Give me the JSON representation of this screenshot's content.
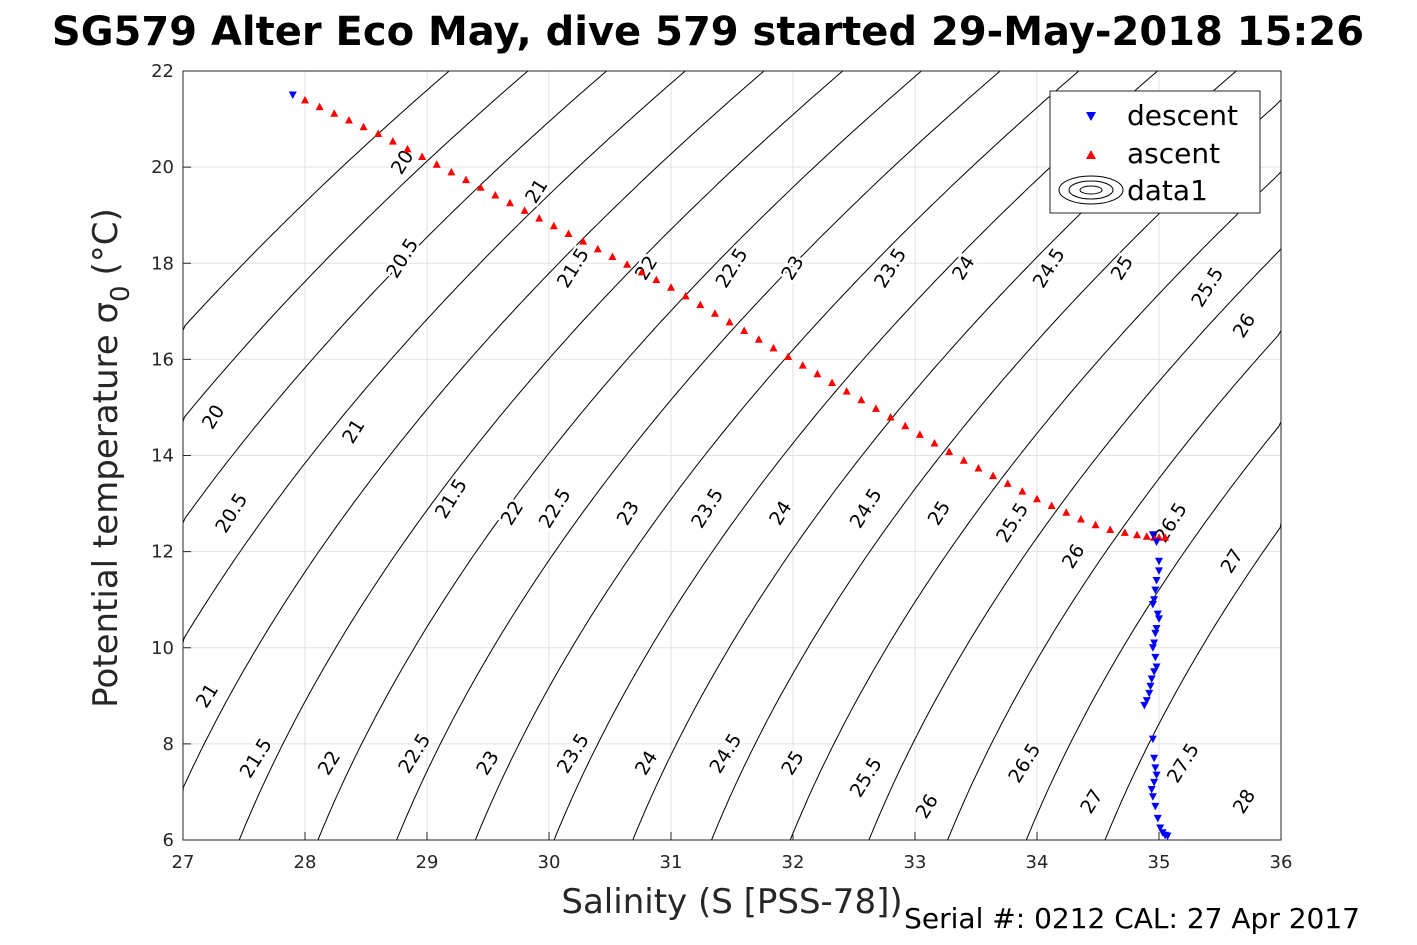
{
  "figure": {
    "title": "SG579 Alter Eco May, dive 579 started 29-May-2018 15:26",
    "footer": "Serial #: 0212  CAL: 27 Apr 2017"
  },
  "chart_data": {
    "type": "scatter",
    "xlabel": "Salinity (S [PSS-78])",
    "ylabel_main": "Potential temperature σ",
    "ylabel_sub": "0",
    "ylabel_unit": "(°C)",
    "xlim": [
      27,
      36
    ],
    "ylim": [
      6,
      22
    ],
    "xticks": [
      27,
      28,
      29,
      30,
      31,
      32,
      33,
      34,
      35,
      36
    ],
    "yticks": [
      6,
      8,
      10,
      12,
      14,
      16,
      18,
      20,
      22
    ],
    "grid": true,
    "legend_position": "top-right",
    "legend": [
      {
        "label": "descent",
        "marker": "triangle-down",
        "color": "#0000ff"
      },
      {
        "label": "ascent",
        "marker": "triangle-up",
        "color": "#ff0000"
      },
      {
        "label": "data1",
        "marker": "contour",
        "color": "#000000"
      }
    ],
    "density_contours": {
      "levels": [
        "20",
        "20.5",
        "21",
        "21.5",
        "22",
        "22.5",
        "23",
        "23.5",
        "24",
        "24.5",
        "25",
        "25.5",
        "26",
        "26.5",
        "27",
        "27.5",
        "28"
      ],
      "level_labels": [
        {
          "text": "20",
          "s": 28.8,
          "t": 20.1
        },
        {
          "text": "20.5",
          "s": 28.8,
          "t": 18.1
        },
        {
          "text": "21",
          "s": 29.9,
          "t": 19.5
        },
        {
          "text": "21.5",
          "s": 30.2,
          "t": 17.9
        },
        {
          "text": "22",
          "s": 30.8,
          "t": 17.9
        },
        {
          "text": "22.5",
          "s": 31.5,
          "t": 17.9
        },
        {
          "text": "23",
          "s": 32.0,
          "t": 17.9
        },
        {
          "text": "23.5",
          "s": 32.8,
          "t": 17.9
        },
        {
          "text": "24",
          "s": 33.4,
          "t": 17.9
        },
        {
          "text": "24.5",
          "s": 34.1,
          "t": 17.9
        },
        {
          "text": "25",
          "s": 34.7,
          "t": 17.9
        },
        {
          "text": "25.5",
          "s": 35.4,
          "t": 17.5
        },
        {
          "text": "26",
          "s": 35.7,
          "t": 16.7
        },
        {
          "text": "20",
          "s": 27.25,
          "t": 14.8
        },
        {
          "text": "20.5",
          "s": 27.4,
          "t": 12.8
        },
        {
          "text": "21",
          "s": 28.4,
          "t": 14.5
        },
        {
          "text": "21.5",
          "s": 29.2,
          "t": 13.1
        },
        {
          "text": "22",
          "s": 29.7,
          "t": 12.8
        },
        {
          "text": "22.5",
          "s": 30.05,
          "t": 12.9
        },
        {
          "text": "23",
          "s": 30.65,
          "t": 12.8
        },
        {
          "text": "23.5",
          "s": 31.3,
          "t": 12.9
        },
        {
          "text": "24",
          "s": 31.9,
          "t": 12.8
        },
        {
          "text": "24.5",
          "s": 32.6,
          "t": 12.9
        },
        {
          "text": "25",
          "s": 33.2,
          "t": 12.8
        },
        {
          "text": "25.5",
          "s": 33.8,
          "t": 12.6
        },
        {
          "text": "26",
          "s": 34.3,
          "t": 11.9
        },
        {
          "text": "26.5",
          "s": 35.1,
          "t": 12.6
        },
        {
          "text": "27",
          "s": 35.6,
          "t": 11.8
        },
        {
          "text": "21",
          "s": 27.2,
          "t": 9.0
        },
        {
          "text": "21.5",
          "s": 27.6,
          "t": 7.7
        },
        {
          "text": "22",
          "s": 28.2,
          "t": 7.6
        },
        {
          "text": "22.5",
          "s": 28.9,
          "t": 7.8
        },
        {
          "text": "23",
          "s": 29.5,
          "t": 7.6
        },
        {
          "text": "23.5",
          "s": 30.2,
          "t": 7.8
        },
        {
          "text": "24",
          "s": 30.8,
          "t": 7.6
        },
        {
          "text": "24.5",
          "s": 31.45,
          "t": 7.8
        },
        {
          "text": "25",
          "s": 32.0,
          "t": 7.6
        },
        {
          "text": "25.5",
          "s": 32.6,
          "t": 7.3
        },
        {
          "text": "26",
          "s": 33.1,
          "t": 6.7
        },
        {
          "text": "26.5",
          "s": 33.9,
          "t": 7.6
        },
        {
          "text": "27",
          "s": 34.45,
          "t": 6.8
        },
        {
          "text": "27.5",
          "s": 35.2,
          "t": 7.6
        },
        {
          "text": "28",
          "s": 35.7,
          "t": 6.8
        }
      ]
    },
    "series": [
      {
        "name": "descent",
        "points": [
          [
            27.9,
            21.5
          ],
          [
            34.95,
            12.35
          ],
          [
            34.98,
            12.2
          ],
          [
            35.0,
            11.8
          ],
          [
            35.0,
            11.6
          ],
          [
            34.98,
            11.4
          ],
          [
            34.97,
            11.2
          ],
          [
            34.96,
            11.0
          ],
          [
            34.95,
            10.9
          ],
          [
            34.99,
            10.7
          ],
          [
            35.0,
            10.6
          ],
          [
            34.98,
            10.4
          ],
          [
            34.97,
            10.3
          ],
          [
            34.96,
            10.1
          ],
          [
            34.95,
            10.0
          ],
          [
            34.97,
            9.8
          ],
          [
            34.98,
            9.6
          ],
          [
            34.96,
            9.5
          ],
          [
            34.94,
            9.35
          ],
          [
            34.93,
            9.2
          ],
          [
            34.92,
            9.05
          ],
          [
            34.9,
            8.9
          ],
          [
            34.88,
            8.8
          ],
          [
            34.95,
            8.1
          ],
          [
            34.96,
            7.7
          ],
          [
            34.97,
            7.5
          ],
          [
            34.98,
            7.35
          ],
          [
            34.96,
            7.2
          ],
          [
            34.94,
            7.05
          ],
          [
            34.95,
            6.9
          ],
          [
            34.97,
            6.7
          ],
          [
            34.99,
            6.45
          ],
          [
            35.01,
            6.25
          ],
          [
            35.03,
            6.15
          ],
          [
            35.05,
            6.1
          ],
          [
            35.07,
            6.08
          ]
        ]
      },
      {
        "name": "ascent",
        "points": [
          [
            28.0,
            21.4
          ],
          [
            28.12,
            21.26
          ],
          [
            28.24,
            21.12
          ],
          [
            28.36,
            20.98
          ],
          [
            28.48,
            20.84
          ],
          [
            28.6,
            20.7
          ],
          [
            28.72,
            20.54
          ],
          [
            28.84,
            20.38
          ],
          [
            28.96,
            20.22
          ],
          [
            29.08,
            20.06
          ],
          [
            29.2,
            19.9
          ],
          [
            29.32,
            19.74
          ],
          [
            29.44,
            19.58
          ],
          [
            29.56,
            19.42
          ],
          [
            29.68,
            19.26
          ],
          [
            29.8,
            19.1
          ],
          [
            29.92,
            18.94
          ],
          [
            30.04,
            18.78
          ],
          [
            30.16,
            18.62
          ],
          [
            30.28,
            18.46
          ],
          [
            30.4,
            18.3
          ],
          [
            30.52,
            18.14
          ],
          [
            30.64,
            17.98
          ],
          [
            30.76,
            17.82
          ],
          [
            30.88,
            17.66
          ],
          [
            31.0,
            17.5
          ],
          [
            31.12,
            17.32
          ],
          [
            31.24,
            17.14
          ],
          [
            31.36,
            16.96
          ],
          [
            31.48,
            16.78
          ],
          [
            31.6,
            16.6
          ],
          [
            31.72,
            16.42
          ],
          [
            31.84,
            16.24
          ],
          [
            31.96,
            16.06
          ],
          [
            32.08,
            15.88
          ],
          [
            32.2,
            15.7
          ],
          [
            32.32,
            15.52
          ],
          [
            32.44,
            15.34
          ],
          [
            32.56,
            15.16
          ],
          [
            32.68,
            14.98
          ],
          [
            32.8,
            14.8
          ],
          [
            32.92,
            14.62
          ],
          [
            33.04,
            14.44
          ],
          [
            33.16,
            14.26
          ],
          [
            33.28,
            14.08
          ],
          [
            33.4,
            13.9
          ],
          [
            33.52,
            13.74
          ],
          [
            33.64,
            13.58
          ],
          [
            33.76,
            13.42
          ],
          [
            33.88,
            13.26
          ],
          [
            34.0,
            13.1
          ],
          [
            34.12,
            12.96
          ],
          [
            34.24,
            12.82
          ],
          [
            34.36,
            12.68
          ],
          [
            34.48,
            12.56
          ],
          [
            34.6,
            12.46
          ],
          [
            34.72,
            12.4
          ],
          [
            34.82,
            12.35
          ],
          [
            34.9,
            12.32
          ],
          [
            34.96,
            12.3
          ],
          [
            35.0,
            12.3
          ],
          [
            35.05,
            12.3
          ]
        ]
      }
    ]
  }
}
